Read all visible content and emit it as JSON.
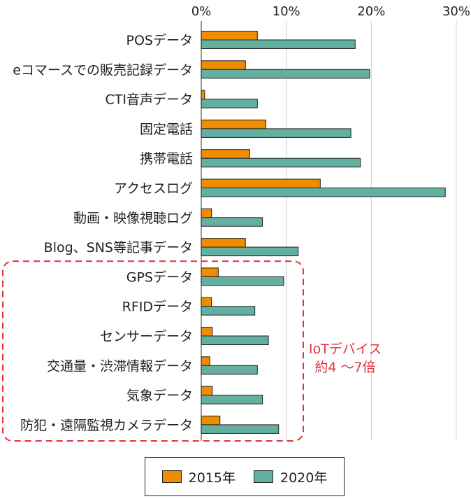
{
  "chart_data": {
    "type": "bar",
    "orientation": "horizontal",
    "categories": [
      "POSデータ",
      "eコマースでの販売記録データ",
      "CTI音声データ",
      "固定電話",
      "携帯電話",
      "アクセスログ",
      "動画・映像視聴ログ",
      "Blog、SNS等記事データ",
      "GPSデータ",
      "RFIDデータ",
      "センサーデータ",
      "交通量・渋滞情報データ",
      "気象データ",
      "防犯・遠隔監視カメラデータ"
    ],
    "series": [
      {
        "name": "2015年",
        "color": "#f08c00",
        "values": [
          6.6,
          5.2,
          0.4,
          7.6,
          5.7,
          14.0,
          1.2,
          5.2,
          2.0,
          1.2,
          1.3,
          1.0,
          1.3,
          2.2
        ]
      },
      {
        "name": "2020年",
        "color": "#63b0a0",
        "values": [
          18.1,
          19.8,
          6.6,
          17.6,
          18.7,
          28.7,
          7.2,
          11.4,
          9.7,
          6.3,
          7.9,
          6.6,
          7.2,
          9.1
        ]
      }
    ],
    "xlim": [
      0,
      30
    ],
    "xticks": [
      "0%",
      "10%",
      "20%",
      "30%"
    ],
    "xtick_values": [
      0,
      10,
      20,
      30
    ],
    "axis_position": "top",
    "grid": true,
    "legend_placement": "bottom-center",
    "annotation": {
      "lines": [
        "IoTデバイス",
        "約4 ～7倍"
      ],
      "color": "#e03040",
      "highlight_categories_from_index": 8
    }
  }
}
